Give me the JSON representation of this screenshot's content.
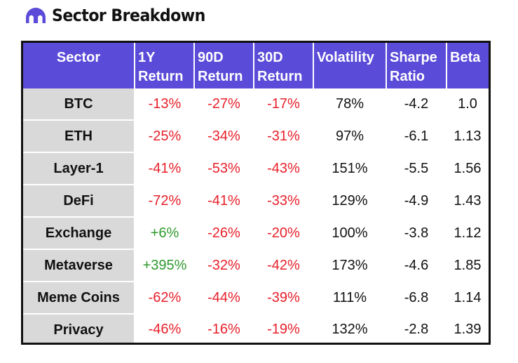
{
  "title": "Sector Breakdown",
  "colors": {
    "accent": "#5a4bd8",
    "negative": "#e8202a",
    "positive": "#2e9a2e",
    "sector_bg": "#d9d9d9"
  },
  "chart_data": {
    "type": "table",
    "columns": [
      {
        "line1": "Sector",
        "line2": ""
      },
      {
        "line1": "1Y",
        "line2": "Return"
      },
      {
        "line1": "90D",
        "line2": "Return"
      },
      {
        "line1": "30D",
        "line2": "Return"
      },
      {
        "line1": "Volatility",
        "line2": ""
      },
      {
        "line1": "Sharpe",
        "line2": "Ratio"
      },
      {
        "line1": "Beta",
        "line2": ""
      }
    ],
    "rows": [
      [
        "BTC",
        "-13%",
        "-27%",
        "-17%",
        "78%",
        "-4.2",
        "1.0"
      ],
      [
        "ETH",
        "-25%",
        "-34%",
        "-31%",
        "97%",
        "-6.1",
        "1.13"
      ],
      [
        "Layer-1",
        "-41%",
        "-53%",
        "-43%",
        "151%",
        "-5.5",
        "1.56"
      ],
      [
        "DeFi",
        "-72%",
        "-41%",
        "-33%",
        "129%",
        "-4.9",
        "1.43"
      ],
      [
        "Exchange",
        "+6%",
        "-26%",
        "-20%",
        "100%",
        "-3.8",
        "1.12"
      ],
      [
        "Metaverse",
        "+395%",
        "-32%",
        "-42%",
        "173%",
        "-4.6",
        "1.85"
      ],
      [
        "Meme Coins",
        "-62%",
        "-44%",
        "-39%",
        "111%",
        "-6.8",
        "1.14"
      ],
      [
        "Privacy",
        "-46%",
        "-16%",
        "-19%",
        "132%",
        "-2.8",
        "1.39"
      ]
    ]
  }
}
